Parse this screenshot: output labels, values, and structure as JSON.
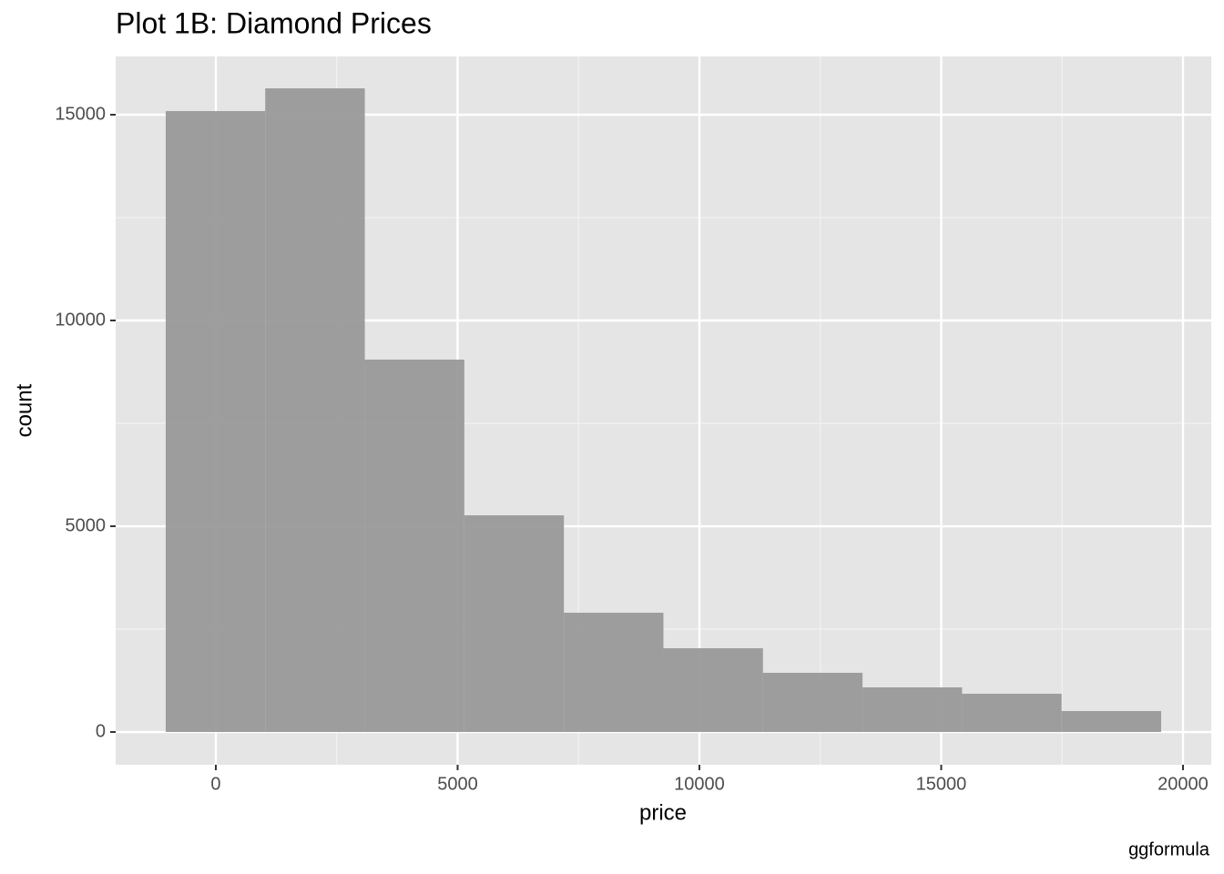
{
  "chart_data": {
    "type": "histogram",
    "title": "Plot 1B: Diamond Prices",
    "x_label": "price",
    "y_label": "count",
    "caption": "ggformula",
    "bins": [
      -1036,
      1022,
      3081,
      5139,
      7198,
      9256,
      11314,
      13373,
      15431,
      17490,
      19548
    ],
    "values": [
      15088,
      15641,
      9049,
      5265,
      2898,
      2035,
      1438,
      1084,
      929,
      509
    ],
    "color": "#999999",
    "xlim": [
      -2071,
      20584
    ],
    "xticks": [
      0,
      5000,
      10000,
      15000,
      20000
    ],
    "minor_xticks": [
      -2500,
      2500,
      7500,
      12500,
      17500
    ],
    "ylim": [
      -796,
      16416
    ],
    "yticks": [
      0,
      5000,
      10000,
      15000
    ],
    "minor_yticks": [
      2500,
      7500,
      12500
    ],
    "grid": true
  }
}
